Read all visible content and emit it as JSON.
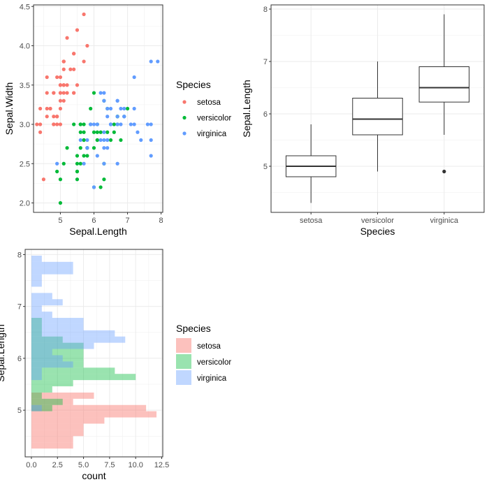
{
  "chart_data": [
    {
      "type": "scatter",
      "xlabel": "Sepal.Length",
      "ylabel": "Sepal.Width",
      "xlim": [
        4.2,
        8.05
      ],
      "ylim": [
        1.88,
        4.52
      ],
      "x_ticks": [
        5,
        6,
        7,
        8
      ],
      "y_ticks": [
        2.0,
        2.5,
        3.0,
        3.5,
        4.0,
        4.5
      ],
      "x_tick_labels": [
        "5",
        "6",
        "7",
        "8"
      ],
      "y_tick_labels": [
        "2.0",
        "2.5",
        "3.0",
        "3.5",
        "4.0",
        "4.5"
      ],
      "grid": true,
      "legend": {
        "title": "Species",
        "position": "right"
      },
      "series": [
        {
          "name": "setosa",
          "color": "#F8766D",
          "points": [
            [
              5.1,
              3.5
            ],
            [
              4.9,
              3.0
            ],
            [
              4.7,
              3.2
            ],
            [
              4.6,
              3.1
            ],
            [
              5.0,
              3.6
            ],
            [
              5.4,
              3.9
            ],
            [
              4.6,
              3.4
            ],
            [
              5.0,
              3.4
            ],
            [
              4.4,
              2.9
            ],
            [
              4.9,
              3.1
            ],
            [
              5.4,
              3.7
            ],
            [
              4.8,
              3.4
            ],
            [
              4.8,
              3.0
            ],
            [
              4.3,
              3.0
            ],
            [
              5.8,
              4.0
            ],
            [
              5.7,
              4.4
            ],
            [
              5.4,
              3.9
            ],
            [
              5.1,
              3.5
            ],
            [
              5.7,
              3.8
            ],
            [
              5.1,
              3.8
            ],
            [
              5.4,
              3.4
            ],
            [
              5.1,
              3.7
            ],
            [
              4.6,
              3.6
            ],
            [
              5.1,
              3.3
            ],
            [
              4.8,
              3.4
            ],
            [
              5.0,
              3.0
            ],
            [
              5.0,
              3.4
            ],
            [
              5.2,
              3.5
            ],
            [
              5.2,
              3.4
            ],
            [
              4.7,
              3.2
            ],
            [
              4.8,
              3.1
            ],
            [
              5.4,
              3.4
            ],
            [
              5.2,
              4.1
            ],
            [
              5.5,
              4.2
            ],
            [
              4.9,
              3.1
            ],
            [
              5.0,
              3.2
            ],
            [
              5.5,
              3.5
            ],
            [
              4.9,
              3.6
            ],
            [
              4.4,
              3.0
            ],
            [
              5.1,
              3.4
            ],
            [
              5.0,
              3.5
            ],
            [
              4.5,
              2.3
            ],
            [
              4.4,
              3.2
            ],
            [
              5.0,
              3.5
            ],
            [
              5.1,
              3.8
            ],
            [
              4.8,
              3.0
            ],
            [
              5.1,
              3.8
            ],
            [
              4.6,
              3.2
            ],
            [
              5.3,
              3.7
            ],
            [
              5.0,
              3.3
            ]
          ]
        },
        {
          "name": "versicolor",
          "color": "#00BA38",
          "points": [
            [
              7.0,
              3.2
            ],
            [
              6.4,
              3.2
            ],
            [
              6.9,
              3.1
            ],
            [
              5.5,
              2.3
            ],
            [
              6.5,
              2.8
            ],
            [
              5.7,
              2.8
            ],
            [
              6.3,
              3.3
            ],
            [
              4.9,
              2.4
            ],
            [
              6.6,
              2.9
            ],
            [
              5.2,
              2.7
            ],
            [
              5.0,
              2.0
            ],
            [
              5.9,
              3.0
            ],
            [
              6.0,
              2.2
            ],
            [
              6.1,
              2.9
            ],
            [
              5.6,
              2.9
            ],
            [
              6.7,
              3.1
            ],
            [
              5.6,
              3.0
            ],
            [
              5.8,
              2.7
            ],
            [
              6.2,
              2.2
            ],
            [
              5.6,
              2.5
            ],
            [
              5.9,
              3.2
            ],
            [
              6.1,
              2.8
            ],
            [
              6.3,
              2.5
            ],
            [
              6.1,
              2.8
            ],
            [
              6.4,
              2.9
            ],
            [
              6.6,
              3.0
            ],
            [
              6.8,
              2.8
            ],
            [
              6.7,
              3.0
            ],
            [
              6.0,
              2.9
            ],
            [
              5.7,
              2.6
            ],
            [
              5.5,
              2.4
            ],
            [
              5.5,
              2.4
            ],
            [
              5.8,
              2.7
            ],
            [
              6.0,
              2.7
            ],
            [
              5.4,
              3.0
            ],
            [
              6.0,
              3.4
            ],
            [
              6.7,
              3.1
            ],
            [
              6.3,
              2.3
            ],
            [
              5.6,
              3.0
            ],
            [
              5.5,
              2.5
            ],
            [
              5.5,
              2.6
            ],
            [
              6.1,
              3.0
            ],
            [
              5.8,
              2.6
            ],
            [
              5.0,
              2.3
            ],
            [
              5.6,
              2.7
            ],
            [
              5.7,
              3.0
            ],
            [
              5.7,
              2.9
            ],
            [
              6.2,
              2.9
            ],
            [
              5.1,
              2.5
            ],
            [
              5.7,
              2.8
            ]
          ]
        },
        {
          "name": "virginica",
          "color": "#619CFF",
          "points": [
            [
              6.3,
              3.3
            ],
            [
              5.8,
              2.7
            ],
            [
              7.1,
              3.0
            ],
            [
              6.3,
              2.9
            ],
            [
              6.5,
              3.0
            ],
            [
              7.6,
              3.0
            ],
            [
              4.9,
              2.5
            ],
            [
              7.3,
              2.9
            ],
            [
              6.7,
              2.5
            ],
            [
              7.2,
              3.6
            ],
            [
              6.5,
              3.2
            ],
            [
              6.4,
              2.7
            ],
            [
              6.8,
              3.0
            ],
            [
              5.7,
              2.5
            ],
            [
              5.8,
              2.8
            ],
            [
              6.4,
              3.2
            ],
            [
              6.5,
              3.0
            ],
            [
              7.7,
              3.8
            ],
            [
              7.7,
              2.6
            ],
            [
              6.0,
              2.2
            ],
            [
              6.9,
              3.2
            ],
            [
              5.6,
              2.8
            ],
            [
              7.7,
              2.8
            ],
            [
              6.3,
              2.7
            ],
            [
              6.7,
              3.3
            ],
            [
              7.2,
              3.2
            ],
            [
              6.2,
              2.8
            ],
            [
              6.1,
              3.0
            ],
            [
              6.4,
              2.8
            ],
            [
              7.2,
              3.0
            ],
            [
              7.4,
              2.8
            ],
            [
              7.9,
              3.8
            ],
            [
              6.4,
              2.8
            ],
            [
              6.3,
              2.8
            ],
            [
              6.1,
              2.6
            ],
            [
              7.7,
              3.0
            ],
            [
              6.3,
              3.4
            ],
            [
              6.4,
              3.1
            ],
            [
              6.0,
              3.0
            ],
            [
              6.9,
              3.1
            ],
            [
              6.7,
              3.1
            ],
            [
              6.9,
              3.1
            ],
            [
              5.8,
              2.7
            ],
            [
              6.8,
              3.2
            ],
            [
              6.7,
              3.3
            ],
            [
              6.7,
              3.0
            ],
            [
              6.3,
              2.5
            ],
            [
              6.5,
              3.0
            ],
            [
              6.2,
              3.4
            ],
            [
              5.9,
              3.0
            ]
          ]
        }
      ]
    },
    {
      "type": "box",
      "xlabel": "Species",
      "ylabel": "Sepal.Length",
      "ylim": [
        4.12,
        8.08
      ],
      "y_ticks": [
        5,
        6,
        7,
        8
      ],
      "y_tick_labels": [
        "5",
        "6",
        "7",
        "8"
      ],
      "categories": [
        "setosa",
        "versicolor",
        "virginica"
      ],
      "grid": true,
      "boxes": [
        {
          "category": "setosa",
          "min": 4.3,
          "q1": 4.8,
          "median": 5.0,
          "q3": 5.2,
          "max": 5.8,
          "outliers": []
        },
        {
          "category": "versicolor",
          "min": 4.9,
          "q1": 5.6,
          "median": 5.9,
          "q3": 6.3,
          "max": 7.0,
          "outliers": []
        },
        {
          "category": "virginica",
          "min": 5.6,
          "q1": 6.225,
          "median": 6.5,
          "q3": 6.9,
          "max": 7.9,
          "outliers": [
            4.9
          ]
        }
      ]
    },
    {
      "type": "histogram",
      "orientation": "horizontal",
      "xlabel": "count",
      "ylabel": "Sepal.Length",
      "xlim": [
        -0.6,
        12.6
      ],
      "ylim": [
        4.1,
        8.1
      ],
      "x_ticks": [
        0,
        2.5,
        5,
        7.5,
        10,
        12.5
      ],
      "x_tick_labels": [
        "0.0",
        "2.5",
        "5.0",
        "7.5",
        "10.0",
        "12.5"
      ],
      "y_ticks": [
        5,
        6,
        7,
        8
      ],
      "y_tick_labels": [
        "5",
        "6",
        "7",
        "8"
      ],
      "bin_edges": [
        4.26,
        4.38,
        4.5,
        4.62,
        4.74,
        4.86,
        4.98,
        5.1,
        5.22,
        5.34,
        5.46,
        5.58,
        5.7,
        5.82,
        5.94,
        6.06,
        6.18,
        6.3,
        6.42,
        6.54,
        6.66,
        6.78,
        6.9,
        7.02,
        7.14,
        7.26,
        7.38,
        7.5,
        7.62,
        7.74,
        7.86,
        7.98
      ],
      "grid": true,
      "legend": {
        "title": "Species",
        "position": "right"
      },
      "series": [
        {
          "name": "setosa",
          "color": "#F8766D",
          "opacity": 0.45,
          "counts": [
            4,
            4,
            5,
            5,
            7,
            12,
            11,
            4,
            6,
            0,
            0,
            0,
            0,
            0,
            0,
            0,
            0,
            0,
            0,
            0,
            0,
            0,
            0,
            0,
            0,
            0,
            0,
            0,
            0,
            0,
            0
          ]
        },
        {
          "name": "versicolor",
          "color": "#00BA38",
          "opacity": 0.4,
          "counts": [
            0,
            0,
            0,
            0,
            0,
            0,
            2,
            3,
            1,
            2,
            4,
            10,
            8,
            5,
            5,
            5,
            5,
            3,
            1,
            1,
            1,
            0,
            0,
            0,
            0,
            0,
            0,
            0,
            0,
            0,
            0
          ]
        },
        {
          "name": "virginica",
          "color": "#619CFF",
          "opacity": 0.4,
          "counts": [
            0,
            0,
            0,
            0,
            0,
            0,
            1,
            0,
            0,
            0,
            0,
            1,
            1,
            4,
            3,
            2,
            6,
            9,
            8,
            5,
            5,
            2,
            1,
            3,
            2,
            0,
            1,
            1,
            4,
            4,
            1
          ]
        }
      ]
    }
  ]
}
